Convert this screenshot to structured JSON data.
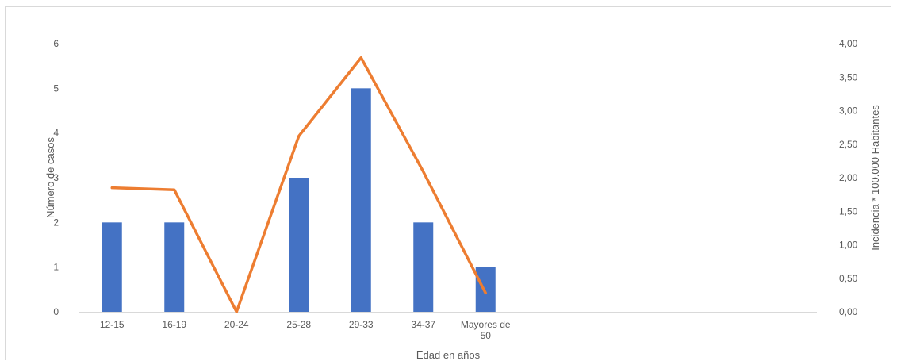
{
  "chart_data": {
    "type": "bar",
    "categories": [
      "12-15",
      "16-19",
      "20-24",
      "25-28",
      "29-33",
      "34-37",
      "Mayores de 50"
    ],
    "category_label_lines": [
      [
        "12-15"
      ],
      [
        "16-19"
      ],
      [
        "20-24"
      ],
      [
        "25-28"
      ],
      [
        "29-33"
      ],
      [
        "34-37"
      ],
      [
        "Mayores de",
        "50"
      ]
    ],
    "series": [
      {
        "type": "bar",
        "axis": "left",
        "values": [
          2,
          2,
          0,
          3,
          5,
          2,
          1
        ],
        "color": "#4472c4"
      },
      {
        "type": "line",
        "axis": "right",
        "values": [
          1.85,
          1.82,
          0.0,
          2.62,
          3.79,
          2.09,
          0.28
        ],
        "color": "#ed7d31"
      }
    ],
    "xlabel": "Edad en años",
    "ylabel": "Número de casos",
    "y2label": "Incidencia * 100.000 Habitantes",
    "ylim": [
      0,
      6
    ],
    "y2lim": [
      0,
      4
    ],
    "yticks": [
      "0",
      "1",
      "2",
      "3",
      "4",
      "5",
      "6"
    ],
    "y2ticks": [
      "0,00",
      "0,50",
      "1,00",
      "1,50",
      "2,00",
      "2,50",
      "3,00",
      "3,50",
      "4,00"
    ],
    "grid": false,
    "legend": "none"
  }
}
